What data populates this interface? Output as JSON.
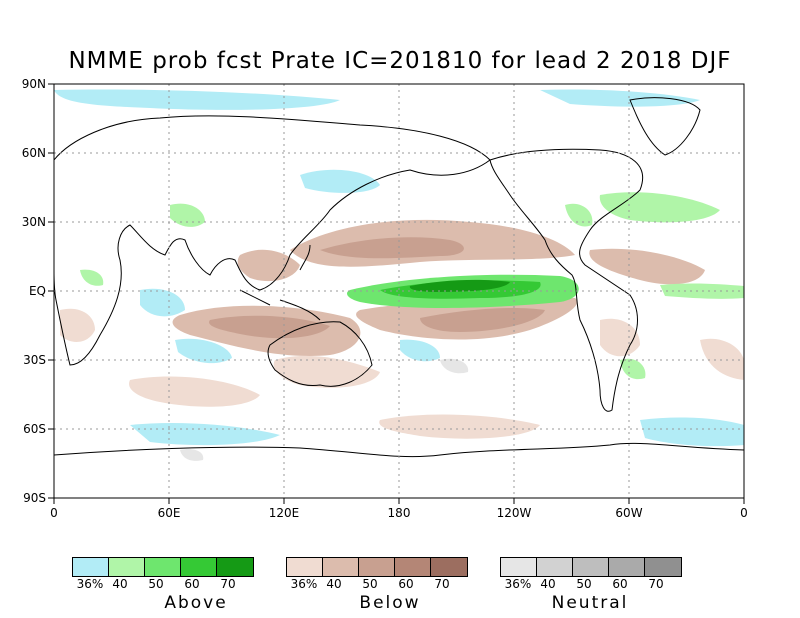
{
  "title": "NMME prob fcst Prate IC=201810 for lead 2 2018 DJF",
  "lat_labels": [
    "90N",
    "60N",
    "30N",
    "EQ",
    "30S",
    "60S",
    "90S"
  ],
  "lon_labels": [
    "0",
    "60E",
    "120E",
    "180",
    "120W",
    "60W",
    "0"
  ],
  "legends": [
    {
      "title": "Above",
      "ticks": [
        "36%",
        "40",
        "50",
        "60",
        "70"
      ],
      "colors": [
        "#b2ecf6",
        "#b0f5a8",
        "#6ee66e",
        "#35c935",
        "#159a15"
      ]
    },
    {
      "title": "Below",
      "ticks": [
        "36%",
        "40",
        "50",
        "60",
        "70"
      ],
      "colors": [
        "#f0dcd2",
        "#dcbcad",
        "#c8a090",
        "#b48676",
        "#9c6e60"
      ]
    },
    {
      "title": "Neutral",
      "ticks": [
        "36%",
        "40",
        "50",
        "60",
        "70"
      ],
      "colors": [
        "#e6e6e6",
        "#d2d2d2",
        "#bebebe",
        "#aaaaaa",
        "#909090"
      ]
    }
  ]
}
